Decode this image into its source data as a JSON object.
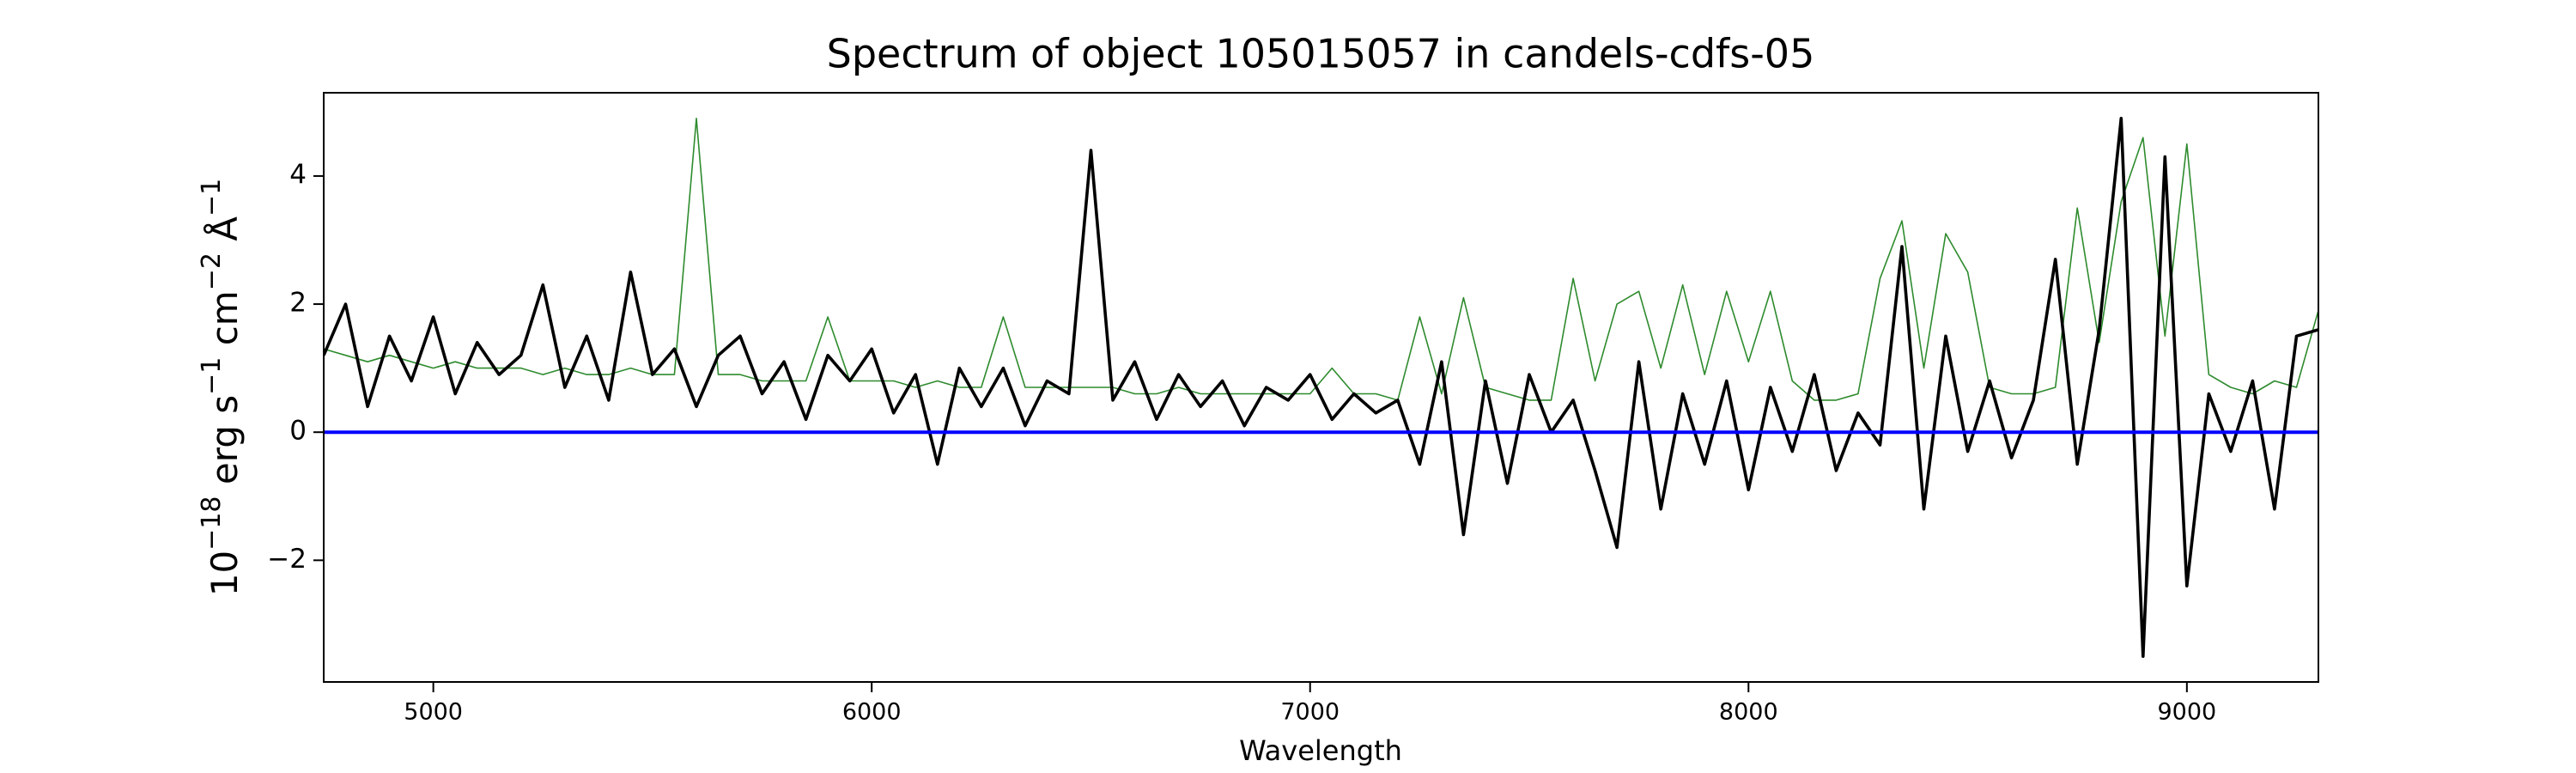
{
  "chart_data": {
    "type": "line",
    "title": "Spectrum of object 105015057 in candels-cdfs-05",
    "xlabel": "Wavelength",
    "ylabel_parts": [
      [
        "10",
        "−18"
      ],
      [
        " erg s",
        "−1"
      ],
      [
        " cm",
        "−2"
      ],
      [
        " Å",
        "−1"
      ]
    ],
    "xlim": [
      4750,
      9300
    ],
    "ylim": [
      -3.9,
      5.3
    ],
    "xticks": [
      5000,
      6000,
      7000,
      8000,
      9000
    ],
    "yticks": [
      {
        "value": -2,
        "label": "−2"
      },
      0,
      2,
      4
    ],
    "x": [
      4750,
      4800,
      4850,
      4900,
      4950,
      5000,
      5050,
      5100,
      5150,
      5200,
      5250,
      5300,
      5350,
      5400,
      5450,
      5500,
      5550,
      5600,
      5650,
      5700,
      5750,
      5800,
      5850,
      5900,
      5950,
      6000,
      6050,
      6100,
      6150,
      6200,
      6250,
      6300,
      6350,
      6400,
      6450,
      6500,
      6550,
      6600,
      6650,
      6700,
      6750,
      6800,
      6850,
      6900,
      6950,
      7000,
      7050,
      7100,
      7150,
      7200,
      7250,
      7300,
      7350,
      7400,
      7450,
      7500,
      7550,
      7600,
      7650,
      7700,
      7750,
      7800,
      7850,
      7900,
      7950,
      8000,
      8050,
      8100,
      8150,
      8200,
      8250,
      8300,
      8350,
      8400,
      8450,
      8500,
      8550,
      8600,
      8650,
      8700,
      8750,
      8800,
      8850,
      8900,
      8950,
      9000,
      9050,
      9100,
      9150,
      9200,
      9250,
      9300
    ],
    "series": [
      {
        "color": "#2e8b2e",
        "width": 1.6,
        "values": [
          1.3,
          1.2,
          1.1,
          1.2,
          1.1,
          1.0,
          1.1,
          1.0,
          1.0,
          1.0,
          0.9,
          1.0,
          0.9,
          0.9,
          1.0,
          0.9,
          0.9,
          4.9,
          0.9,
          0.9,
          0.8,
          0.8,
          0.8,
          1.8,
          0.8,
          0.8,
          0.8,
          0.7,
          0.8,
          0.7,
          0.7,
          1.8,
          0.7,
          0.7,
          0.7,
          0.7,
          0.7,
          0.6,
          0.6,
          0.7,
          0.6,
          0.6,
          0.6,
          0.6,
          0.6,
          0.6,
          1.0,
          0.6,
          0.6,
          0.5,
          1.8,
          0.6,
          2.1,
          0.7,
          0.6,
          0.5,
          0.5,
          2.4,
          0.8,
          2.0,
          2.2,
          1.0,
          2.3,
          0.9,
          2.2,
          1.1,
          2.2,
          0.8,
          0.5,
          0.5,
          0.6,
          2.4,
          3.3,
          1.0,
          3.1,
          2.5,
          0.7,
          0.6,
          0.6,
          0.7,
          3.5,
          1.4,
          3.6,
          4.6,
          1.5,
          4.5,
          0.9,
          0.7,
          0.6,
          0.8,
          0.7,
          1.9
        ]
      },
      {
        "color": "#000000",
        "width": 3.6,
        "values": [
          1.2,
          2.0,
          0.4,
          1.5,
          0.8,
          1.8,
          0.6,
          1.4,
          0.9,
          1.2,
          2.3,
          0.7,
          1.5,
          0.5,
          2.5,
          0.9,
          1.3,
          0.4,
          1.2,
          1.5,
          0.6,
          1.1,
          0.2,
          1.2,
          0.8,
          1.3,
          0.3,
          0.9,
          -0.5,
          1.0,
          0.4,
          1.0,
          0.1,
          0.8,
          0.6,
          4.4,
          0.5,
          1.1,
          0.2,
          0.9,
          0.4,
          0.8,
          0.1,
          0.7,
          0.5,
          0.9,
          0.2,
          0.6,
          0.3,
          0.5,
          -0.5,
          1.1,
          -1.6,
          0.8,
          -0.8,
          0.9,
          0.0,
          0.5,
          -0.6,
          -1.8,
          1.1,
          -1.2,
          0.6,
          -0.5,
          0.8,
          -0.9,
          0.7,
          -0.3,
          0.9,
          -0.6,
          0.3,
          -0.2,
          2.9,
          -1.2,
          1.5,
          -0.3,
          0.8,
          -0.4,
          0.5,
          2.7,
          -0.5,
          1.6,
          4.9,
          -3.5,
          4.3,
          -2.4,
          0.6,
          -0.3,
          0.8,
          -1.2,
          1.5,
          1.6
        ]
      },
      {
        "color": "#0000ff",
        "width": 4,
        "x": [
          4750,
          9300
        ],
        "values": [
          0,
          0
        ]
      }
    ]
  }
}
